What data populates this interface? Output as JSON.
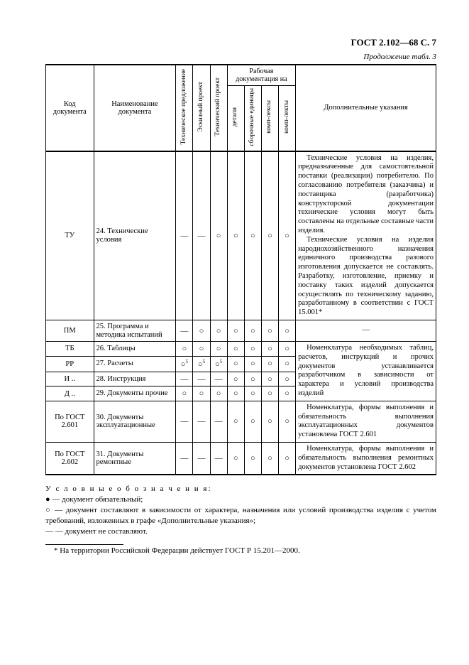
{
  "header": "ГОСТ 2.102—68 С. 7",
  "continuation": "Продолжение табл.  3",
  "columns": {
    "code": "Код\nдокумента",
    "name": "Наименование\nдокумента",
    "v1": "Техническое предложение",
    "v2": "Эскизный проект",
    "v3": "Технический проект",
    "group": "Рабочая документация на",
    "v4": "детали",
    "v5": "сборочные единицы",
    "v6": "комп-лексы",
    "v7": "комп-лекты",
    "notes": "Дополнительные указания"
  },
  "rows": [
    {
      "code": "ТУ",
      "name": "24. Технические условия",
      "v": [
        "—",
        "—",
        "○",
        "○",
        "○",
        "○",
        "○"
      ],
      "sup": [
        "",
        "",
        "",
        "",
        "",
        "",
        ""
      ],
      "notes": "Технические условия на изделия, предназначенные для самостоятельной поставки (реализации) потребителю. По согласованию потребителя (заказчика) и поставщика (разработчика) конструкторской документации технические условия могут быть составлены на отдельные составные части изделия.\nТехнические условия на изделия народнохозяйственного назначения единичного производства разового изготовления допускается не составлять. Разработку, изготовление, приемку и поставку таких изделий допускается осуществлять по техническому заданию, разработанному в соответствии с ГОСТ 15.001*"
    },
    {
      "code": "ПМ",
      "name": "25. Программа и методика испытаний",
      "v": [
        "—",
        "○",
        "○",
        "○",
        "○",
        "○",
        "○"
      ],
      "sup": [
        "",
        "",
        "",
        "",
        "",
        "",
        ""
      ],
      "notes": "—"
    },
    {
      "code": "ТБ",
      "name": "26. Таблицы",
      "v": [
        "○",
        "○",
        "○",
        "○",
        "○",
        "○",
        "○"
      ],
      "sup": [
        "",
        "",
        "",
        "",
        "",
        "",
        ""
      ]
    },
    {
      "code": "РР",
      "name": "27. Расчеты",
      "v": [
        "○",
        "○",
        "○",
        "○",
        "○",
        "○",
        "○"
      ],
      "sup": [
        "5",
        "5",
        "5",
        "",
        "",
        "",
        ""
      ]
    },
    {
      "code": "И ..",
      "name": "28. Инструкция",
      "v": [
        "—",
        "—",
        "—",
        "○",
        "○",
        "○",
        "○"
      ],
      "sup": [
        "",
        "",
        "",
        "",
        "",
        "",
        ""
      ]
    },
    {
      "code": "Д ..",
      "name": "29. Документы прочие",
      "v": [
        "○",
        "○",
        "○",
        "○",
        "○",
        "○",
        "○"
      ],
      "sup": [
        "",
        "",
        "",
        "",
        "",
        "",
        ""
      ]
    },
    {
      "code": "По ГОСТ 2.601",
      "name": "30. Документы эксплуатационные",
      "v": [
        "—",
        "—",
        "—",
        "○",
        "○",
        "○",
        "○"
      ],
      "sup": [
        "",
        "",
        "",
        "",
        "",
        "",
        ""
      ],
      "notes": "Номенклатура, формы выполнения и обязательность выполнения эксплуатационных документов установлена ГОСТ 2.601"
    },
    {
      "code": "По ГОСТ 2.602",
      "name": "31. Документы ремонтные",
      "v": [
        "—",
        "—",
        "—",
        "○",
        "○",
        "○",
        "○"
      ],
      "sup": [
        "",
        "",
        "",
        "",
        "",
        "",
        ""
      ],
      "notes": "Номенклатура, формы выполнения и обязательность выполнения ремонтных документов установлена ГОСТ 2.602"
    }
  ],
  "mergedNotes26to29": "Номенклатура необходимых таблиц, расчетов, инструкций и прочих документов устанавливается разработчиком в зависимости от характера и условий производства изделий",
  "legend": {
    "title": "У с л о в н ы е   о б о з н а ч е н и я:",
    "l1": "● — документ обязательный;",
    "l2": "○ — документ составляют в зависимости от характера, назначения или условий производства изделия с учетом требований, изложенных в графе «Дополнительные указания»;",
    "l3": "— — документ не составляют."
  },
  "footnote": "* На территории Российской Федерации действует ГОСТ Р 15.201—2000."
}
